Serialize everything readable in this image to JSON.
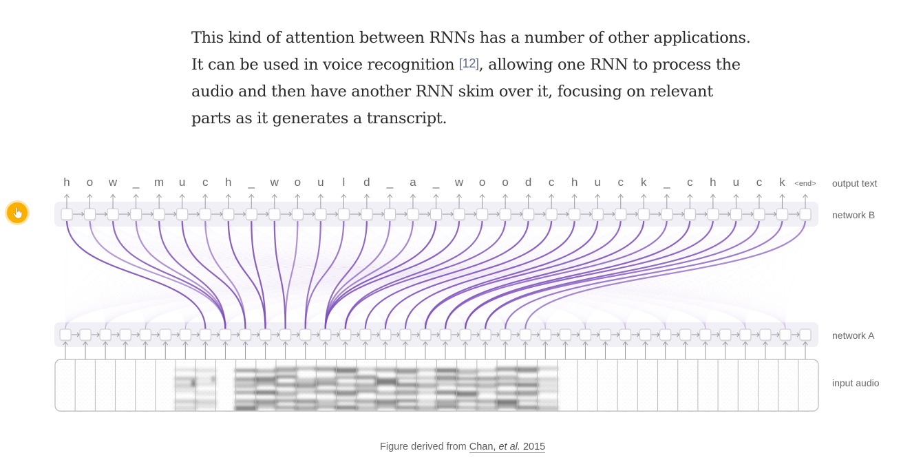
{
  "paragraph": {
    "line1": "This kind of attention between RNNs has a number of other applications.",
    "line2_before": "It can be used in voice recognition ",
    "citation": "[12]",
    "line2_after": ", allowing one RNN to process the",
    "line3": "audio and then have another RNN skim over it, focusing on relevant",
    "line4": "parts as it generates a transcript."
  },
  "cursor_badge": {
    "icon": "pointing-hand-icon",
    "color": "#f9b000"
  },
  "diagram": {
    "output_chars": [
      "h",
      "o",
      "w",
      "_",
      "m",
      "u",
      "c",
      "h",
      "_",
      "w",
      "o",
      "u",
      "l",
      "d",
      "_",
      "a",
      "_",
      "w",
      "o",
      "o",
      "d",
      "c",
      "h",
      "u",
      "c",
      "k",
      "_",
      "c",
      "h",
      "u",
      "c",
      "k",
      "<end>"
    ],
    "labels": {
      "output_text": "output text",
      "network_b": "network B",
      "network_a": "network A",
      "input_audio": "input audio"
    },
    "network_a_cell_count": 38,
    "attention_color": "#7b4fb8",
    "strong_attention": [
      {
        "out": 0,
        "in": 7,
        "w": 0.95
      },
      {
        "out": 1,
        "in": 8,
        "w": 0.45
      },
      {
        "out": 2,
        "in": 8,
        "w": 0.85
      },
      {
        "out": 3,
        "in": 8,
        "w": 0.5
      },
      {
        "out": 4,
        "in": 8,
        "w": 0.85
      },
      {
        "out": 5,
        "in": 9,
        "w": 0.9
      },
      {
        "out": 6,
        "in": 9,
        "w": 0.5
      },
      {
        "out": 7,
        "in": 10,
        "w": 0.95
      },
      {
        "out": 8,
        "in": 10,
        "w": 0.95
      },
      {
        "out": 9,
        "in": 11,
        "w": 0.9
      },
      {
        "out": 10,
        "in": 11,
        "w": 0.5
      },
      {
        "out": 11,
        "in": 12,
        "w": 0.75
      },
      {
        "out": 12,
        "in": 12,
        "w": 0.7
      },
      {
        "out": 13,
        "in": 13,
        "w": 0.85
      },
      {
        "out": 14,
        "in": 13,
        "w": 0.6
      },
      {
        "out": 15,
        "in": 13,
        "w": 0.6
      },
      {
        "out": 16,
        "in": 13,
        "w": 0.95
      },
      {
        "out": 17,
        "in": 13,
        "w": 0.9
      },
      {
        "out": 18,
        "in": 14,
        "w": 0.85
      },
      {
        "out": 19,
        "in": 14,
        "w": 0.85
      },
      {
        "out": 20,
        "in": 15,
        "w": 0.9
      },
      {
        "out": 21,
        "in": 16,
        "w": 0.9
      },
      {
        "out": 22,
        "in": 17,
        "w": 0.9
      },
      {
        "out": 23,
        "in": 18,
        "w": 0.9
      },
      {
        "out": 24,
        "in": 18,
        "w": 0.85
      },
      {
        "out": 25,
        "in": 19,
        "w": 0.9
      },
      {
        "out": 26,
        "in": 19,
        "w": 0.75
      },
      {
        "out": 27,
        "in": 20,
        "w": 0.9
      },
      {
        "out": 28,
        "in": 20,
        "w": 0.85
      },
      {
        "out": 29,
        "in": 21,
        "w": 0.85
      },
      {
        "out": 30,
        "in": 21,
        "w": 0.75
      },
      {
        "out": 31,
        "in": 22,
        "w": 0.7
      },
      {
        "out": 32,
        "in": 23,
        "w": 0.6
      }
    ],
    "spectrogram_active_segments": [
      [
        6,
        0.35
      ],
      [
        7,
        0.25
      ],
      [
        9,
        0.75
      ],
      [
        10,
        0.8
      ],
      [
        11,
        0.8
      ],
      [
        12,
        0.65
      ],
      [
        13,
        0.65
      ],
      [
        14,
        0.75
      ],
      [
        15,
        0.7
      ],
      [
        16,
        0.75
      ],
      [
        17,
        0.8
      ],
      [
        18,
        0.45
      ],
      [
        19,
        0.8
      ],
      [
        20,
        0.75
      ],
      [
        21,
        0.55
      ],
      [
        22,
        0.8
      ],
      [
        23,
        0.75
      ],
      [
        24,
        0.35
      ]
    ]
  },
  "caption": {
    "prefix": "Figure derived from ",
    "link_author": "Chan, ",
    "link_etal": "et al.",
    "link_year": " 2015"
  }
}
